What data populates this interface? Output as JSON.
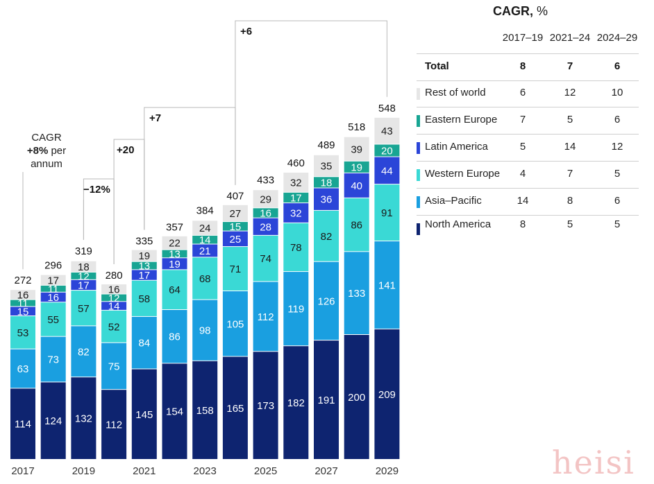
{
  "chart_data": {
    "type": "stacked-bar",
    "categories": [
      "2017",
      "2018",
      "2019",
      "2020",
      "2021",
      "2022",
      "2023",
      "2024",
      "2025",
      "2026",
      "2027",
      "2028",
      "2029"
    ],
    "x_tick_labels": [
      "2017",
      "",
      "2019",
      "",
      "2021",
      "",
      "2023",
      "",
      "2025",
      "",
      "2027",
      "",
      "2029"
    ],
    "series": [
      {
        "name": "North America",
        "color": "#0e2470",
        "values": [
          114,
          124,
          132,
          112,
          145,
          154,
          158,
          165,
          173,
          182,
          191,
          200,
          209
        ]
      },
      {
        "name": "Asia–Pacific",
        "color": "#1a9fe0",
        "values": [
          63,
          73,
          82,
          75,
          84,
          86,
          98,
          105,
          112,
          119,
          126,
          133,
          141
        ]
      },
      {
        "name": "Western Europe",
        "color": "#3ad9d5",
        "values": [
          53,
          55,
          57,
          52,
          58,
          64,
          68,
          71,
          74,
          78,
          82,
          86,
          91
        ]
      },
      {
        "name": "Latin America",
        "color": "#2b45d8",
        "values": [
          15,
          16,
          17,
          14,
          17,
          19,
          21,
          25,
          28,
          32,
          36,
          40,
          44
        ]
      },
      {
        "name": "Eastern Europe",
        "color": "#18a593",
        "values": [
          11,
          11,
          12,
          12,
          13,
          13,
          14,
          15,
          16,
          17,
          18,
          19,
          20
        ]
      },
      {
        "name": "Rest of world",
        "color": "#e6e6e6",
        "values": [
          16,
          17,
          18,
          16,
          19,
          22,
          24,
          27,
          29,
          32,
          35,
          39,
          43
        ]
      }
    ],
    "totals": [
      272,
      296,
      319,
      280,
      335,
      357,
      384,
      407,
      433,
      460,
      489,
      518,
      548
    ],
    "growth_annotations": [
      {
        "text": "−12%",
        "from": "2019",
        "to": "2020"
      },
      {
        "text": "+20",
        "from": "2020",
        "to": "2021"
      },
      {
        "text": "+7",
        "from": "2021",
        "to": "2024"
      },
      {
        "text": "+6",
        "from": "2024",
        "to": "2029"
      }
    ],
    "cagr_note": {
      "line1": "CAGR",
      "line2_bold": "+8%",
      "line2_rest": " per",
      "line3": "annum"
    }
  },
  "cagr_table": {
    "title_bold": "CAGR,",
    "title_rest": " %",
    "columns": [
      "2017–19",
      "2021–24",
      "2024–29"
    ],
    "rows": [
      {
        "name": "Total",
        "values": [
          "8",
          "7",
          "6"
        ],
        "color": ""
      },
      {
        "name": "Rest of world",
        "values": [
          "6",
          "12",
          "10"
        ],
        "color": "#e6e6e6"
      },
      {
        "name": "Eastern Europe",
        "values": [
          "7",
          "5",
          "6"
        ],
        "color": "#18a593"
      },
      {
        "name": "Latin America",
        "values": [
          "5",
          "14",
          "12"
        ],
        "color": "#2b45d8"
      },
      {
        "name": "Western Europe",
        "values": [
          "4",
          "7",
          "5"
        ],
        "color": "#3ad9d5"
      },
      {
        "name": "Asia–Pacific",
        "values": [
          "14",
          "8",
          "6"
        ],
        "color": "#1a9fe0"
      },
      {
        "name": "North America",
        "values": [
          "8",
          "5",
          "5"
        ],
        "color": "#0e2470"
      }
    ]
  },
  "watermark": "heisi"
}
